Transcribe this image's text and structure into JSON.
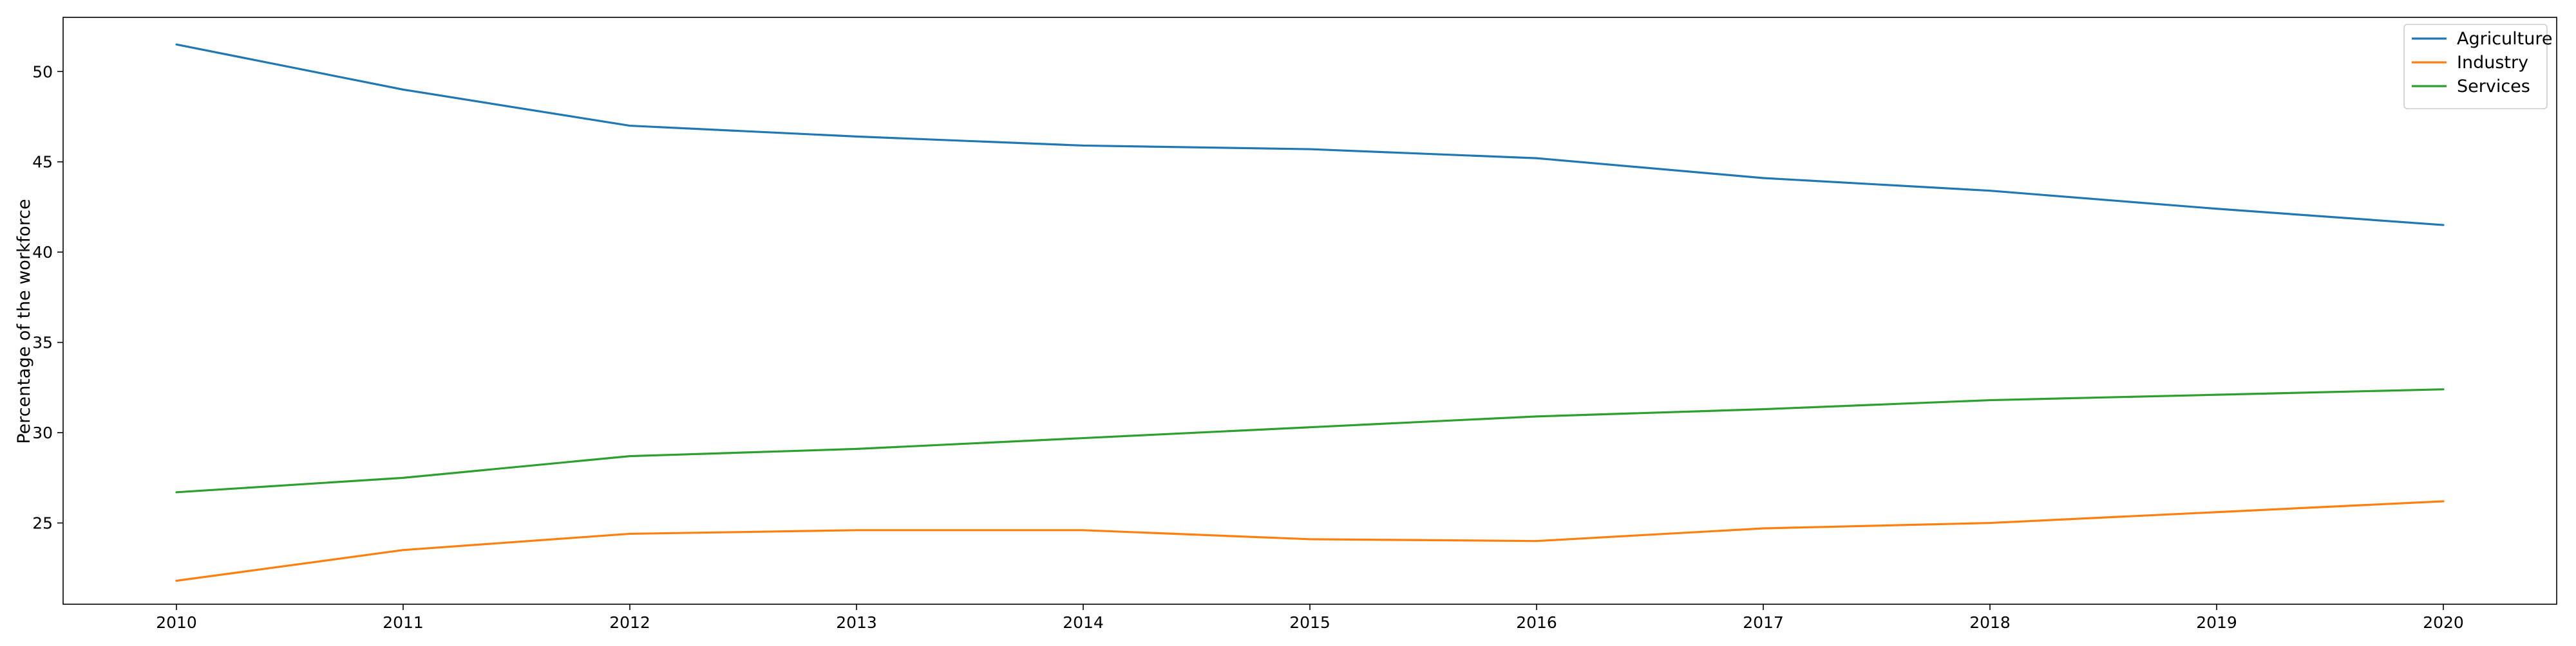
{
  "chart_data": {
    "type": "line",
    "title": "",
    "xlabel": "",
    "ylabel": "Percentage of the workforce",
    "x": [
      "2010",
      "2011",
      "2012",
      "2013",
      "2014",
      "2015",
      "2016",
      "2017",
      "2018",
      "2019",
      "2020"
    ],
    "xlim": [
      2009.5,
      2020.5
    ],
    "ylim": [
      20.5,
      53.0
    ],
    "yticks": [
      25,
      30,
      35,
      40,
      45,
      50
    ],
    "grid": false,
    "legend_position": "top-right",
    "series": [
      {
        "name": "Agriculture",
        "color": "#1f77b4",
        "values": [
          51.5,
          49.0,
          47.0,
          46.4,
          45.9,
          45.7,
          45.2,
          44.1,
          43.4,
          42.4,
          41.5
        ]
      },
      {
        "name": "Industry",
        "color": "#ff7f0e",
        "values": [
          21.8,
          23.5,
          24.4,
          24.6,
          24.6,
          24.1,
          24.0,
          24.7,
          25.0,
          25.6,
          26.2
        ]
      },
      {
        "name": "Services",
        "color": "#2ca02c",
        "values": [
          26.7,
          27.5,
          28.7,
          29.1,
          29.7,
          30.3,
          30.9,
          31.3,
          31.8,
          32.1,
          32.4
        ]
      }
    ]
  }
}
